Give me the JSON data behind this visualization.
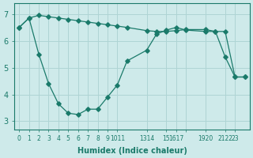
{
  "xlabel": "Humidex (Indice chaleur)",
  "background_color": "#ceeaea",
  "grid_color": "#afd4d4",
  "line_color": "#1a7a6a",
  "xlim": [
    -0.5,
    23.5
  ],
  "ylim": [
    2.7,
    7.4
  ],
  "yticks": [
    3,
    4,
    5,
    6,
    7
  ],
  "xtick_positions": [
    0,
    1,
    2,
    3,
    4,
    5,
    6,
    7,
    8,
    9,
    10,
    13,
    15,
    16,
    17,
    19,
    21,
    22
  ],
  "xtick_labels": [
    "0",
    "1",
    "2",
    "3",
    "4",
    "5",
    "6",
    "7",
    "8",
    "9",
    "1011",
    "1314",
    "15",
    "1617",
    "",
    "1920",
    "2122",
    "23"
  ],
  "line1_x": [
    0,
    1,
    2,
    3,
    4,
    5,
    6,
    7,
    8,
    9,
    10,
    11,
    13,
    14,
    15,
    16,
    17,
    19,
    20,
    21,
    22,
    23
  ],
  "line1_y": [
    6.5,
    6.85,
    6.95,
    6.9,
    6.85,
    6.8,
    6.75,
    6.7,
    6.65,
    6.6,
    6.55,
    6.5,
    6.38,
    6.35,
    6.35,
    6.38,
    6.42,
    6.42,
    6.35,
    6.35,
    4.65,
    4.65
  ],
  "line2_x": [
    0,
    1,
    2,
    3,
    4,
    5,
    6,
    7,
    8,
    9,
    10,
    11,
    13,
    14,
    15,
    16,
    17,
    19,
    20,
    21,
    22,
    23
  ],
  "line2_y": [
    6.5,
    6.85,
    5.5,
    4.4,
    3.65,
    3.3,
    3.25,
    3.45,
    3.45,
    3.9,
    4.35,
    5.25,
    5.65,
    6.25,
    6.4,
    6.5,
    6.4,
    6.35,
    6.35,
    5.4,
    4.65,
    4.65
  ]
}
